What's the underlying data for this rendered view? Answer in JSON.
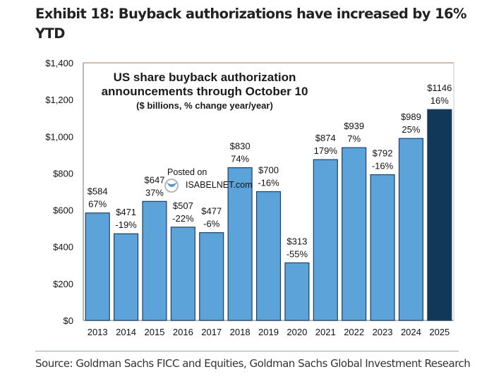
{
  "header": {
    "title": "Exhibit 18: Buyback authorizations have increased by 16% YTD"
  },
  "watermark": {
    "line1": "Posted on",
    "line2": "ISABELNET.com"
  },
  "footer": {
    "source": "Source: Goldman Sachs FICC and Equities, Goldman Sachs Global Investment Research"
  },
  "colors": {
    "bar": "#5ba3d8",
    "bar_highlight": "#113759",
    "bar_edge": "#1f3f66",
    "frame_top": "#a0785a",
    "axis": "#a0a0a0"
  },
  "chart_data": {
    "type": "bar",
    "title": "US share buyback authorization announcements through October 10",
    "title_lines": [
      "US share buyback authorization",
      "announcements through October 10"
    ],
    "subtitle": "($ billions, % change year/year)",
    "xlabel": "",
    "ylabel": "",
    "ylim": [
      0,
      1400
    ],
    "yticks": [
      0,
      200,
      400,
      600,
      800,
      1000,
      1200,
      1400
    ],
    "ytick_labels": [
      "$0",
      "$200",
      "$400",
      "$600",
      "$800",
      "$1,000",
      "$1,200",
      "$1,400"
    ],
    "grid": false,
    "legend": "none",
    "categories": [
      "2013",
      "2014",
      "2015",
      "2016",
      "2017",
      "2018",
      "2019",
      "2020",
      "2021",
      "2022",
      "2023",
      "2024",
      "2025"
    ],
    "values": [
      584,
      471,
      647,
      507,
      477,
      830,
      700,
      313,
      874,
      939,
      792,
      989,
      1146
    ],
    "value_labels": [
      "$584",
      "$471",
      "$647",
      "$507",
      "$477",
      "$830",
      "$700",
      "$313",
      "$874",
      "$939",
      "$792",
      "$989",
      "$1146"
    ],
    "pct_change_labels": [
      "67%",
      "-19%",
      "37%",
      "-22%",
      "-6%",
      "74%",
      "-16%",
      "-55%",
      "179%",
      "7%",
      "-16%",
      "25%",
      "16%"
    ],
    "highlighted_category": "2025"
  }
}
